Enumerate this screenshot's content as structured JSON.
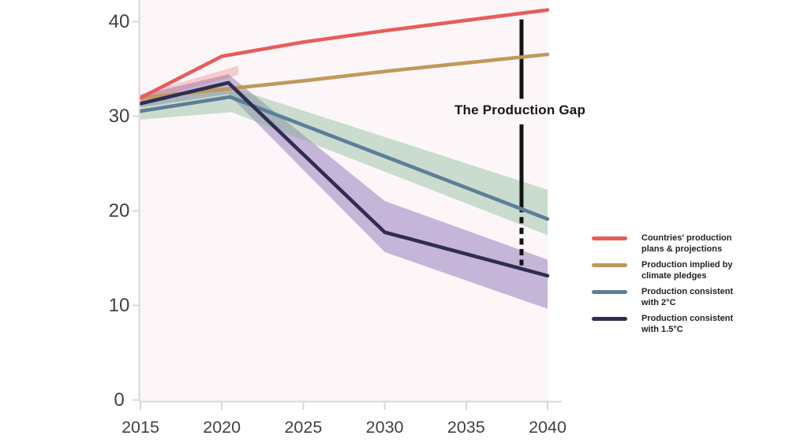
{
  "colors": {
    "background": "#ffffff",
    "plot_bg": "#fcf6f8",
    "axis": "#d8d8d8",
    "tick_label": "#414141",
    "annotation_text": "#161616"
  },
  "annotation": {
    "label": "The Production Gap"
  },
  "legend": {
    "position": "right",
    "items": [
      {
        "line1": "Countries' production",
        "line2": "plans & projections",
        "color": "#e85c5c"
      },
      {
        "line1": "Production implied by",
        "line2": "climate pledges",
        "color": "#c0995a"
      },
      {
        "line1": "Production consistent",
        "line2": "with 2°C",
        "color": "#5b7f99"
      },
      {
        "line1": "Production consistent",
        "line2": "with 1.5°C",
        "color": "#2f2d52"
      }
    ]
  },
  "chart_data": {
    "type": "line",
    "title": "The Production Gap",
    "xlabel": "",
    "ylabel": "",
    "grid": false,
    "x_axis": {
      "min": 2015,
      "max": 2040,
      "ticks": [
        2015,
        2020,
        2025,
        2030,
        2035,
        2040
      ]
    },
    "y_axis": {
      "min": 0,
      "max": 42.4,
      "ticks": [
        0,
        10,
        20,
        30,
        40
      ]
    },
    "series": [
      {
        "id": "plans",
        "name": "Countries' production plans & projections",
        "color": "#e85c5c",
        "points": [
          [
            2015,
            31.9
          ],
          [
            2020,
            36.3
          ],
          [
            2025,
            37.8
          ],
          [
            2030,
            39.0
          ],
          [
            2035,
            40.1
          ],
          [
            2040,
            41.2
          ]
        ]
      },
      {
        "id": "pledges",
        "name": "Production implied by climate pledges",
        "color": "#c0995a",
        "points": [
          [
            2015,
            31.9
          ],
          [
            2020,
            32.8
          ],
          [
            2025,
            33.7
          ],
          [
            2030,
            34.7
          ],
          [
            2035,
            35.6
          ],
          [
            2040,
            36.5
          ]
        ]
      },
      {
        "id": "2c",
        "name": "Production consistent with 2°C",
        "color": "#5b7f99",
        "points": [
          [
            2015,
            30.5
          ],
          [
            2020.5,
            32.0
          ],
          [
            2040,
            19.1
          ]
        ]
      },
      {
        "id": "1p5c",
        "name": "Production consistent with 1.5°C",
        "color": "#2f2d52",
        "points": [
          [
            2015,
            31.3
          ],
          [
            2020.4,
            33.5
          ],
          [
            2030,
            17.7
          ],
          [
            2040,
            13.1
          ]
        ]
      }
    ],
    "bands": [
      {
        "id": "1p5c-range",
        "name": "1.5C uncertainty range",
        "color": "rgba(115,85,170,0.40)",
        "top": [
          [
            2015,
            32.2
          ],
          [
            2020.4,
            34.4
          ],
          [
            2030,
            21.0
          ],
          [
            2040,
            14.8
          ]
        ],
        "bottom": [
          [
            2015,
            30.9
          ],
          [
            2020.4,
            32.3
          ],
          [
            2030,
            15.6
          ],
          [
            2040,
            9.6
          ]
        ]
      },
      {
        "id": "plans-range",
        "name": "plans uncertainty range",
        "color": "rgba(225,110,110,0.30)",
        "top": [
          [
            2015,
            32.3
          ],
          [
            2021,
            35.3
          ]
        ],
        "bottom": [
          [
            2015,
            31.5
          ],
          [
            2021,
            34.3
          ]
        ]
      },
      {
        "id": "2c-range",
        "name": "2C uncertainty range",
        "color": "rgba(122,178,134,0.38)",
        "top": [
          [
            2015,
            31.3
          ],
          [
            2020.6,
            33.0
          ],
          [
            2040,
            22.2
          ]
        ],
        "bottom": [
          [
            2015,
            29.6
          ],
          [
            2020.6,
            30.4
          ],
          [
            2040,
            17.4
          ]
        ]
      }
    ],
    "gap_line": {
      "x_year": 2038.4,
      "color": "#151515",
      "segments": [
        {
          "from": 40.2,
          "to": 31.8,
          "dashed": false
        },
        {
          "from": 29.1,
          "to": 19.8,
          "dashed": false
        },
        {
          "from": 19.3,
          "to": 14.2,
          "dashed": true
        }
      ]
    }
  }
}
